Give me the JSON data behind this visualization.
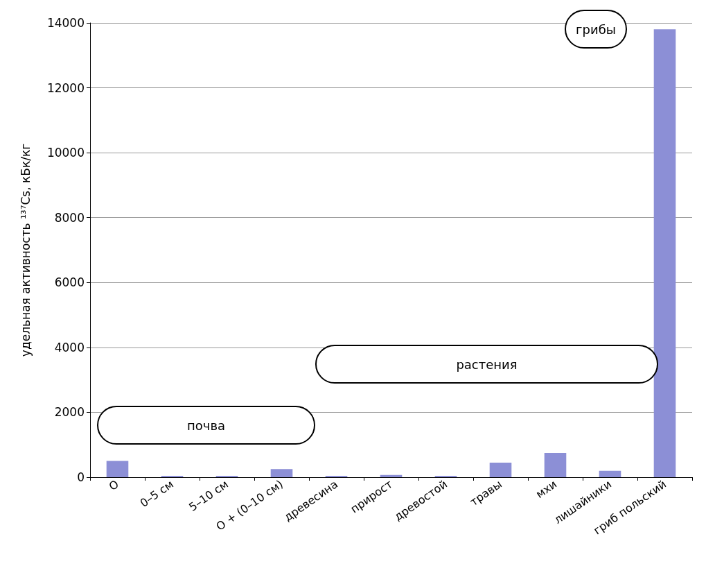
{
  "chart_data": {
    "type": "bar",
    "ylabel": "удельная активность ¹³⁷Cs, кБк/кг",
    "categories": [
      "O",
      "0–5 см",
      "5–10 см",
      "O + (0–10 см)",
      "древесина",
      "прирост",
      "древостой",
      "травы",
      "мхи",
      "лишайники",
      "гриб польский"
    ],
    "values": [
      500,
      20,
      20,
      250,
      10,
      70,
      10,
      450,
      750,
      200,
      13800
    ],
    "color": "#8c8fd6",
    "ylim": [
      0,
      14000
    ],
    "yticks": [
      0,
      2000,
      4000,
      6000,
      8000,
      10000,
      12000,
      14000
    ],
    "grid": "y",
    "annotations": [
      "почва",
      "растения",
      "грибы"
    ]
  }
}
